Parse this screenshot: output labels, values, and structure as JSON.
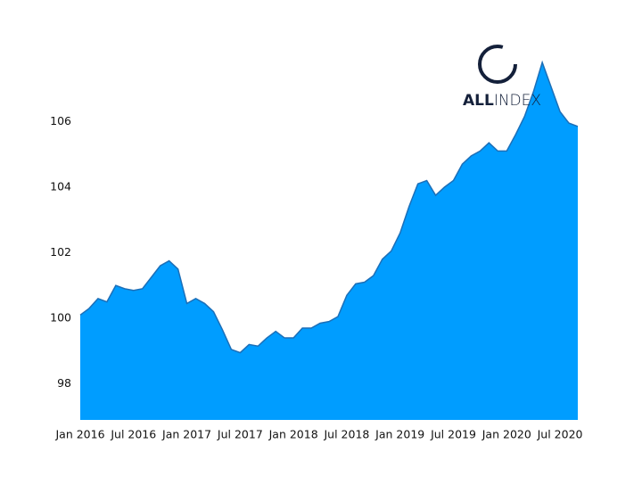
{
  "chart_data": {
    "type": "area",
    "x": [
      "2016-01",
      "2016-02",
      "2016-03",
      "2016-04",
      "2016-05",
      "2016-06",
      "2016-07",
      "2016-08",
      "2016-09",
      "2016-10",
      "2016-11",
      "2016-12",
      "2017-01",
      "2017-02",
      "2017-03",
      "2017-04",
      "2017-05",
      "2017-06",
      "2017-07",
      "2017-08",
      "2017-09",
      "2017-10",
      "2017-11",
      "2017-12",
      "2018-01",
      "2018-02",
      "2018-03",
      "2018-04",
      "2018-05",
      "2018-06",
      "2018-07",
      "2018-08",
      "2018-09",
      "2018-10",
      "2018-11",
      "2018-12",
      "2019-01",
      "2019-02",
      "2019-03",
      "2019-04",
      "2019-05",
      "2019-06",
      "2019-07",
      "2019-08",
      "2019-09",
      "2019-10",
      "2019-11",
      "2019-12",
      "2020-01",
      "2020-02",
      "2020-03",
      "2020-04",
      "2020-05",
      "2020-06",
      "2020-07",
      "2020-08",
      "2020-09"
    ],
    "values": [
      100.1,
      100.3,
      100.6,
      100.5,
      101.0,
      100.9,
      100.85,
      100.9,
      101.25,
      101.6,
      101.75,
      101.5,
      100.45,
      100.6,
      100.45,
      100.2,
      99.65,
      99.05,
      98.95,
      99.2,
      99.15,
      99.4,
      99.6,
      99.4,
      99.4,
      99.7,
      99.7,
      99.85,
      99.9,
      100.05,
      100.7,
      101.05,
      101.1,
      101.3,
      101.8,
      102.05,
      102.6,
      103.4,
      104.1,
      104.2,
      103.75,
      104.0,
      104.2,
      104.7,
      104.95,
      105.1,
      105.35,
      105.1,
      105.1,
      105.6,
      106.15,
      106.9,
      107.8,
      107.05,
      106.3,
      105.95,
      105.85
    ],
    "color": "#009dff",
    "line_color": "#1c6fb8",
    "xlim": [
      "2016-01",
      "2020-09"
    ],
    "xticks": [
      {
        "value": "2016-01",
        "label": "Jan 2016"
      },
      {
        "value": "2016-07",
        "label": "Jul 2016"
      },
      {
        "value": "2017-01",
        "label": "Jan 2017"
      },
      {
        "value": "2017-07",
        "label": "Jul 2017"
      },
      {
        "value": "2018-01",
        "label": "Jan 2018"
      },
      {
        "value": "2018-07",
        "label": "Jul 2018"
      },
      {
        "value": "2019-01",
        "label": "Jan 2019"
      },
      {
        "value": "2019-07",
        "label": "Jul 2019"
      },
      {
        "value": "2020-01",
        "label": "Jan 2020"
      },
      {
        "value": "2020-07",
        "label": "Jul 2020"
      }
    ],
    "ylim": [
      96.9,
      108.4
    ],
    "yticks": [
      98,
      100,
      102,
      104,
      106
    ],
    "grid": false
  },
  "logo": {
    "bold": "ALL",
    "light": "INDEX"
  }
}
